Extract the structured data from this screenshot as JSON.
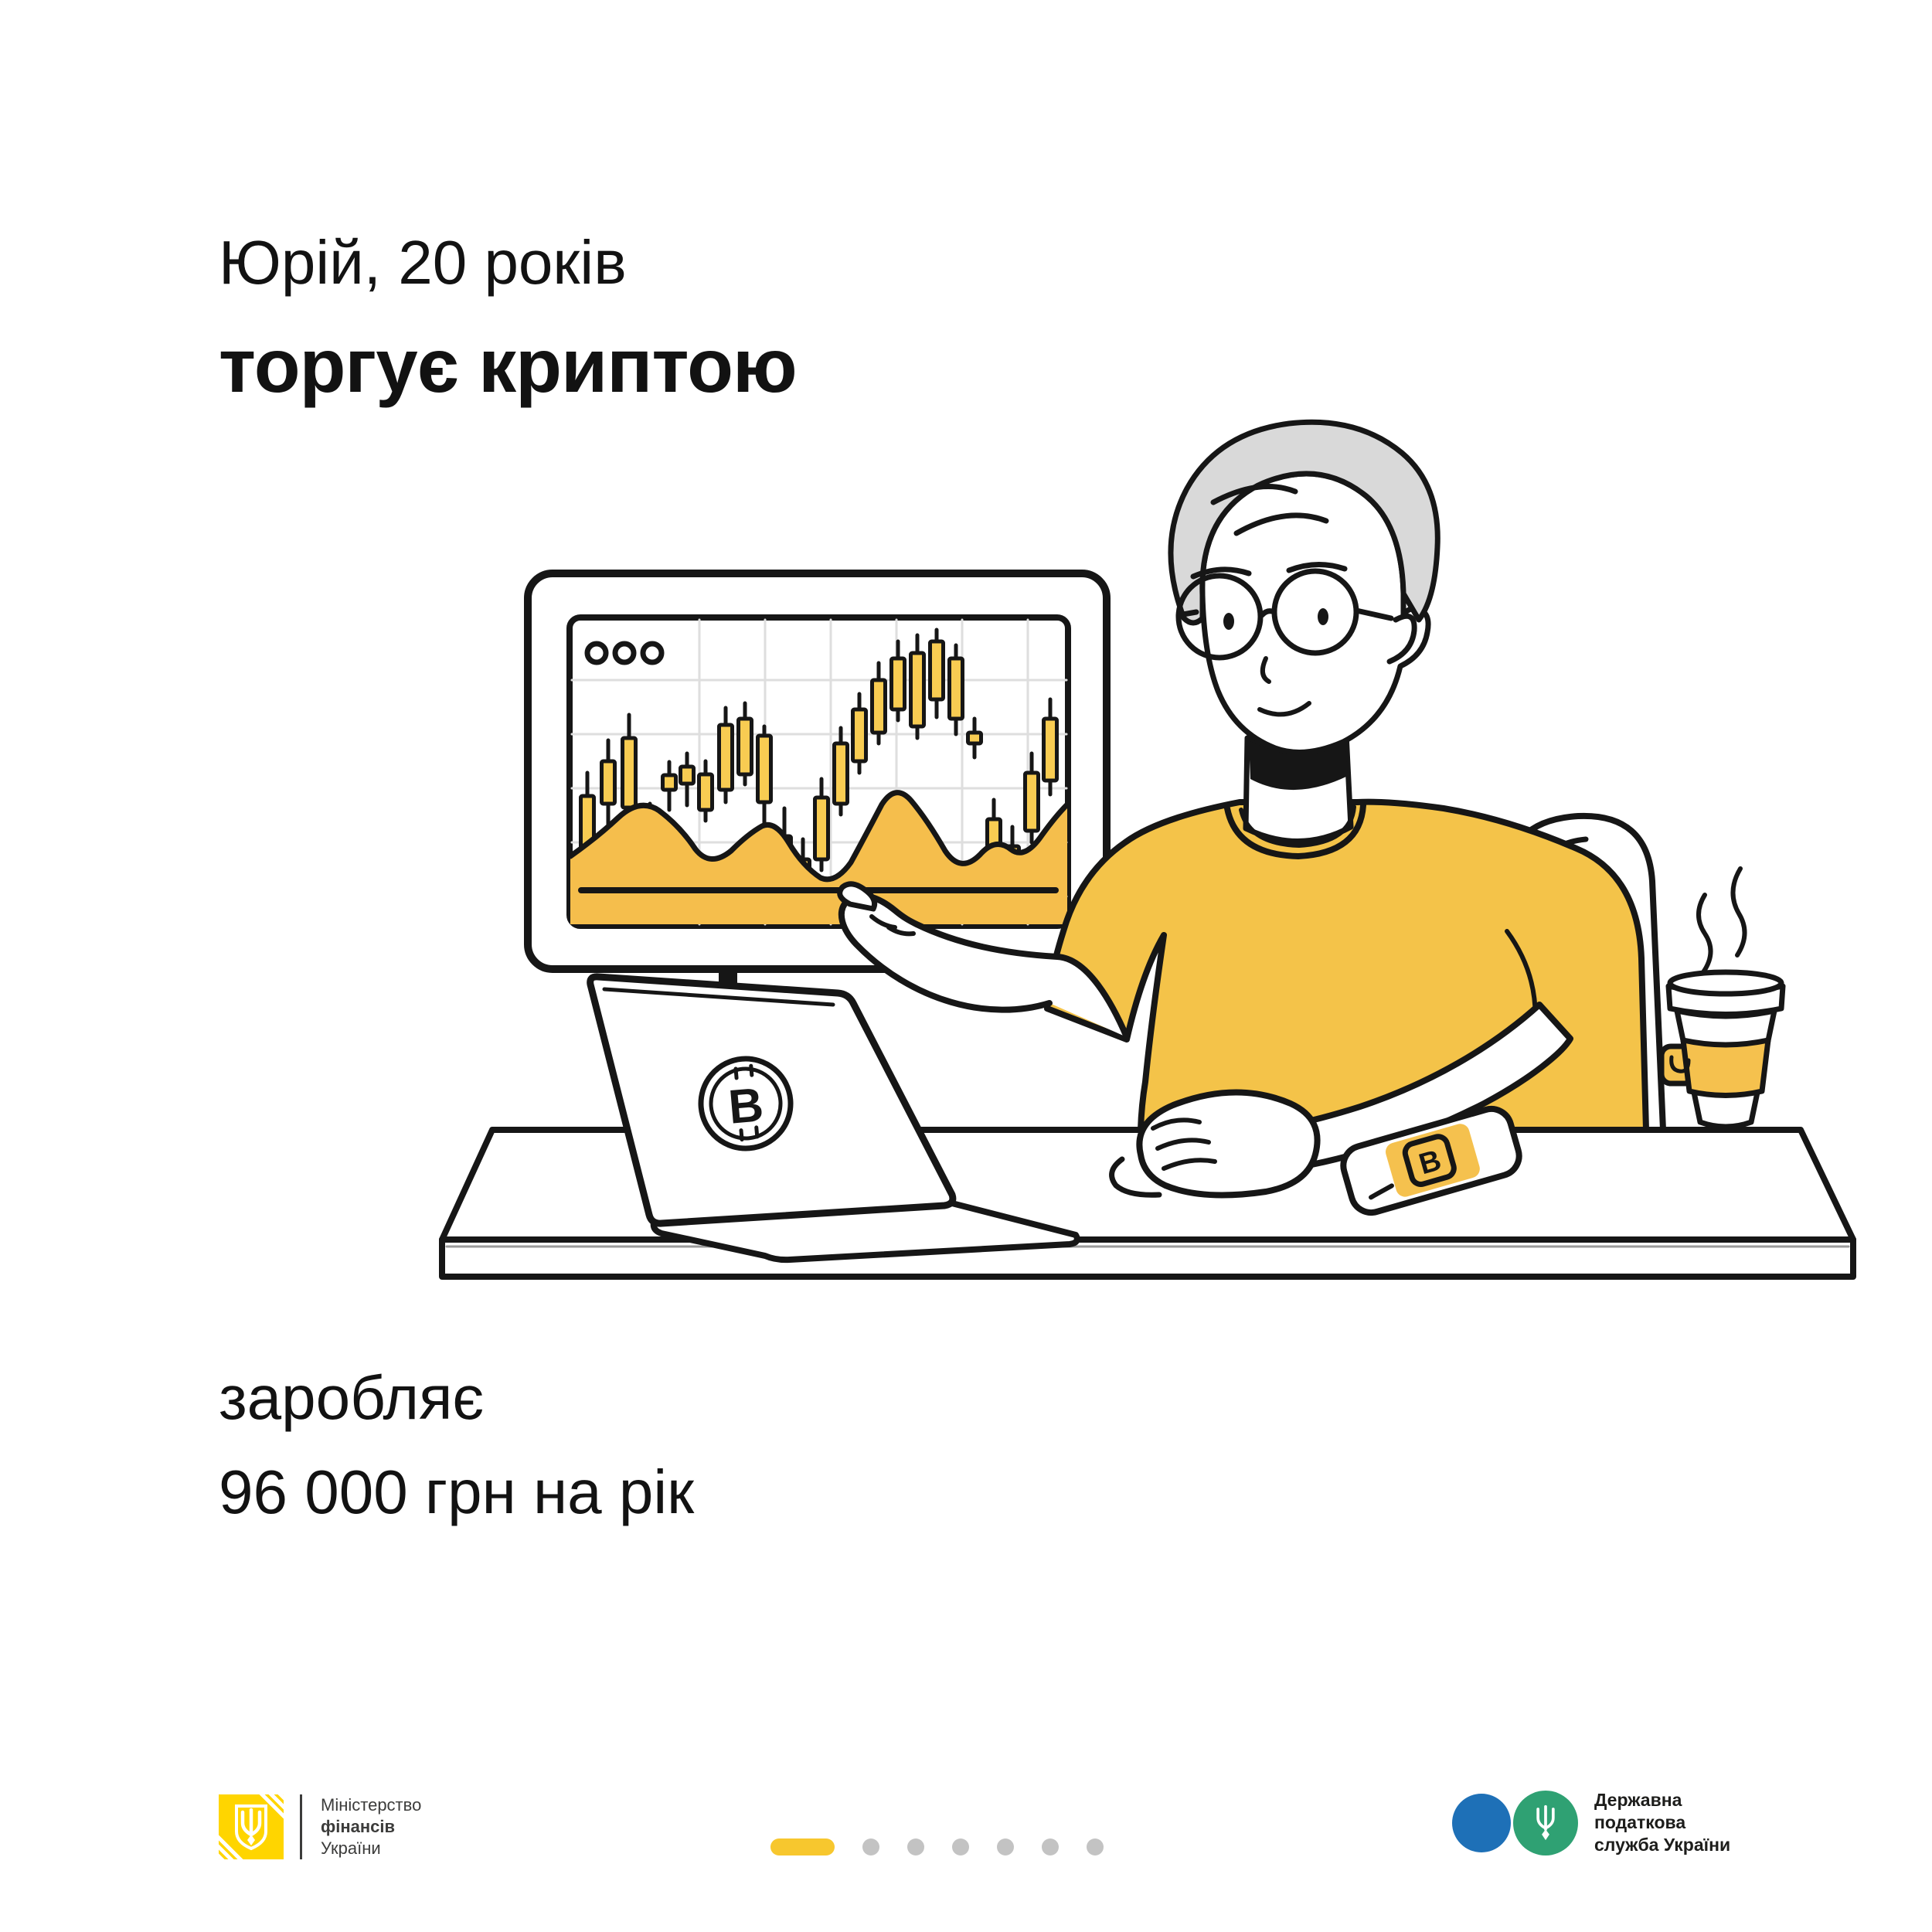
{
  "card": {
    "person_line1": "Юрій, 20 років",
    "person_line2": "торгує криптою",
    "earnings_line1": "заробляє",
    "earnings_line2": "96 000 грн на рік"
  },
  "illustration": {
    "description": "young man with gray hair and round glasses in yellow t-shirt sits at desk, pointing at monitor with crypto candlestick chart; laptop with bitcoin logo, smartphone with crypto app, coffee cup with steam",
    "bitcoin_glyph": "B",
    "monitor_dots": 3,
    "colors": {
      "line": "#161616",
      "tshirt": "#F4C349",
      "candle": "#F8CC52",
      "area": "#F5BE4C",
      "hair": "#D9D9D9",
      "grid": "#DEDEDE",
      "accent": "#F5C14E"
    },
    "grid": {
      "v": [
        905,
        990,
        1075,
        1160,
        1245,
        1330
      ],
      "h": [
        880,
        950,
        1020,
        1090,
        1160
      ]
    },
    "candles": [
      [
        760,
        1030,
        1105,
        1000,
        1120
      ],
      [
        787,
        985,
        1040,
        958,
        1092
      ],
      [
        814,
        955,
        1045,
        925,
        1070
      ],
      [
        841,
        1075,
        1140,
        1040,
        1155
      ],
      [
        866,
        1003,
        1022,
        986,
        1048
      ],
      [
        889,
        992,
        1014,
        975,
        1042
      ],
      [
        913,
        1002,
        1048,
        985,
        1062
      ],
      [
        939,
        938,
        1022,
        916,
        1038
      ],
      [
        964,
        930,
        1002,
        910,
        1015
      ],
      [
        989,
        952,
        1038,
        940,
        1082
      ],
      [
        1015,
        1082,
        1142,
        1046,
        1162
      ],
      [
        1039,
        1112,
        1168,
        1086,
        1178
      ],
      [
        1063,
        1032,
        1112,
        1008,
        1126
      ],
      [
        1088,
        962,
        1040,
        942,
        1054
      ],
      [
        1112,
        918,
        985,
        898,
        1000
      ],
      [
        1137,
        880,
        948,
        858,
        962
      ],
      [
        1162,
        852,
        918,
        830,
        932
      ],
      [
        1187,
        845,
        940,
        822,
        955
      ],
      [
        1212,
        830,
        905,
        815,
        928
      ],
      [
        1237,
        852,
        930,
        835,
        950
      ],
      [
        1261,
        948,
        962,
        930,
        980
      ],
      [
        1286,
        1060,
        1130,
        1035,
        1148
      ],
      [
        1310,
        1095,
        1172,
        1070,
        1184
      ],
      [
        1335,
        1000,
        1075,
        975,
        1090
      ],
      [
        1359,
        930,
        1010,
        905,
        1028
      ]
    ]
  },
  "footer": {
    "minfin": {
      "logo_color": "#FFD500",
      "line1": "Міністерство",
      "line2": "фінансів",
      "line3": "України"
    },
    "pagination": {
      "total": 7,
      "active_index": 0,
      "active_color": "#F7C72E",
      "dot_color": "#C3C3C3"
    },
    "tax_service": {
      "blue": "#1E70B7",
      "green": "#2FA173",
      "line1": "Державна",
      "line2": "податкова",
      "line3": "служба України"
    }
  }
}
